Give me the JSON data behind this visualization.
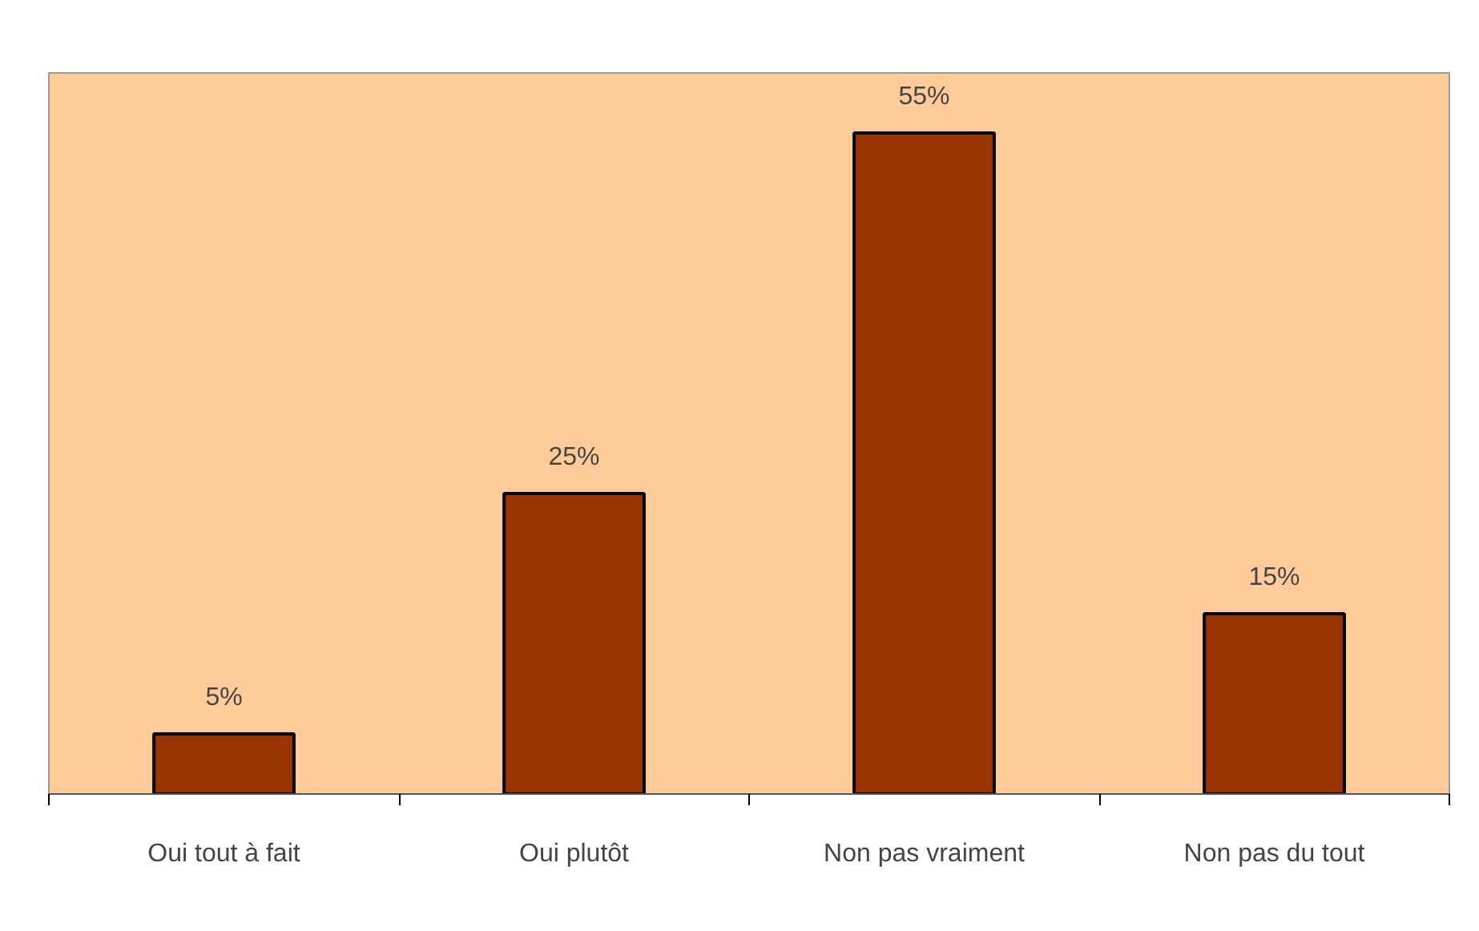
{
  "chart_data": {
    "type": "bar",
    "categories": [
      "Oui tout à fait",
      "Oui plutôt",
      "Non pas vraiment",
      "Non pas du tout"
    ],
    "values": [
      5,
      25,
      55,
      15
    ],
    "value_labels": [
      "5%",
      "25%",
      "55%",
      "15%"
    ],
    "color": "#993300",
    "ylim": [
      0,
      60
    ]
  }
}
